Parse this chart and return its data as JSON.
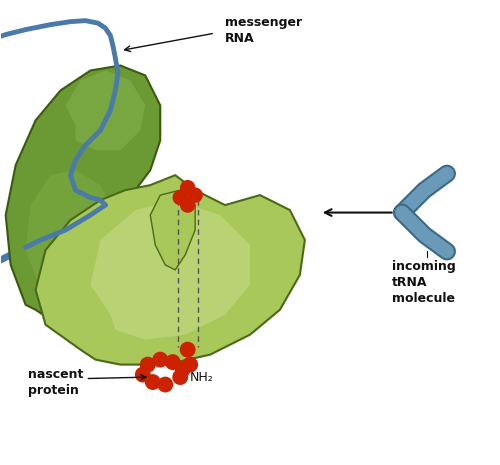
{
  "bg_color": "#ffffff",
  "large_subunit_color": "#6b9933",
  "large_subunit_edge": "#3a5a10",
  "small_subunit_color": "#a8c85a",
  "small_subunit_edge": "#4a6a18",
  "small_subunit_light": "#c8dc8a",
  "mrna_color": "#4a7aaa",
  "bead_color": "#cc2200",
  "trna_color": "#6a9ab8",
  "trna_edge": "#3a6a88",
  "arrow_color": "#111111",
  "text_color": "#111111",
  "label_mrna": "messenger\nRNA",
  "label_nascent": "nascent\nprotein",
  "label_nh2": "NH₂",
  "label_incoming": "incoming\ntRNA\nmolecule"
}
